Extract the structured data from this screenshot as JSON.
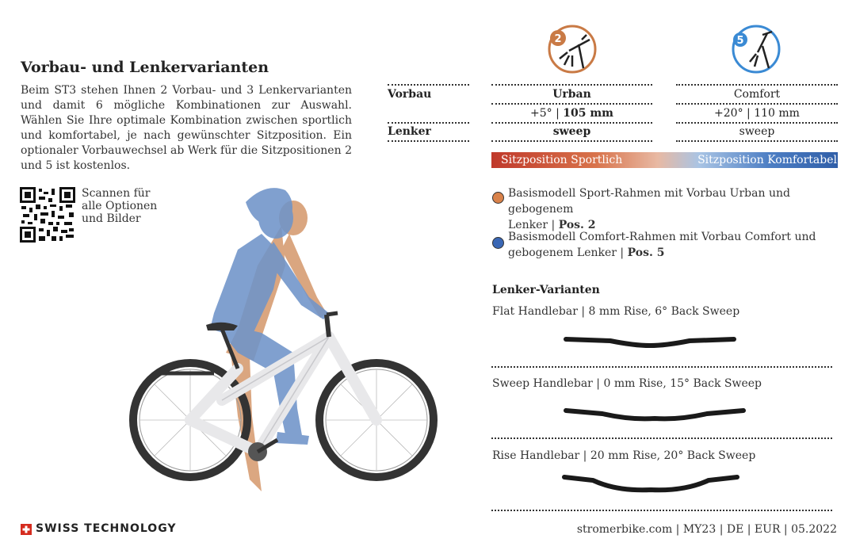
{
  "heading": "Vorbau- und Lenkervarianten",
  "intro": "Beim ST3 stehen Ihnen 2 Vorbau- und 3 Lenkervarianten und damit 6 mögliche Kombinationen zur Auswahl. Wählen Sie Ihre optimale Kombination zwischen sportlich und komfortabel, je nach gewünschter Sitzposition. Ein optionaler Vorbauwechsel ab Werk für die Sitzpositionen 2 und 5 ist kostenlos.",
  "qr": {
    "caption_1": "Scannen für",
    "caption_2": "alle Optionen",
    "caption_3": "und Bilder"
  },
  "positions": [
    {
      "number": "2",
      "color": "#c97a45"
    },
    {
      "number": "5",
      "color": "#3a8ad4"
    }
  ],
  "table": {
    "row1_label": "Vorbau",
    "row2_label": "Lenker",
    "col_a": {
      "stem": "Urban",
      "angle": "+5°",
      "sep": "|",
      "length": "105 mm",
      "bar": "sweep"
    },
    "col_b": {
      "stem": "Comfort",
      "angle": "+20°",
      "sep": "|",
      "length": "110 mm",
      "bar": "sweep"
    }
  },
  "gradient": {
    "left": "Sitzposition Sportlich",
    "right": "Sitzposition Komfortabel"
  },
  "legend": [
    {
      "line1": "Basismodell Sport-Rahmen mit Vorbau Urban und gebogenem",
      "line2": "Lenker | ",
      "pos": "Pos. 2",
      "color": "#d9824a"
    },
    {
      "line1": "Basismodell Comfort-Rahmen mit Vorbau Comfort und",
      "line2": "gebogenem Lenker | ",
      "pos": "Pos. 5",
      "color": "#3a67b5"
    }
  ],
  "handlebars": {
    "title": "Lenker-Varianten",
    "items": [
      {
        "label": "Flat Handlebar | 8 mm Rise, 6° Back Sweep"
      },
      {
        "label": "Sweep Handlebar | 0 mm Rise, 15° Back Sweep"
      },
      {
        "label": "Rise Handlebar | 20 mm Rise, 20° Back Sweep"
      }
    ]
  },
  "footer": {
    "brand": "SWISS TECHNOLOGY",
    "meta": "stromerbike.com | MY23 | DE | EUR | 05.2022"
  },
  "colors": {
    "orange": "#d9824a",
    "blue": "#3a67b5",
    "bike_frame": "#e8e8ea",
    "rider_blue": "#6f94c9"
  }
}
